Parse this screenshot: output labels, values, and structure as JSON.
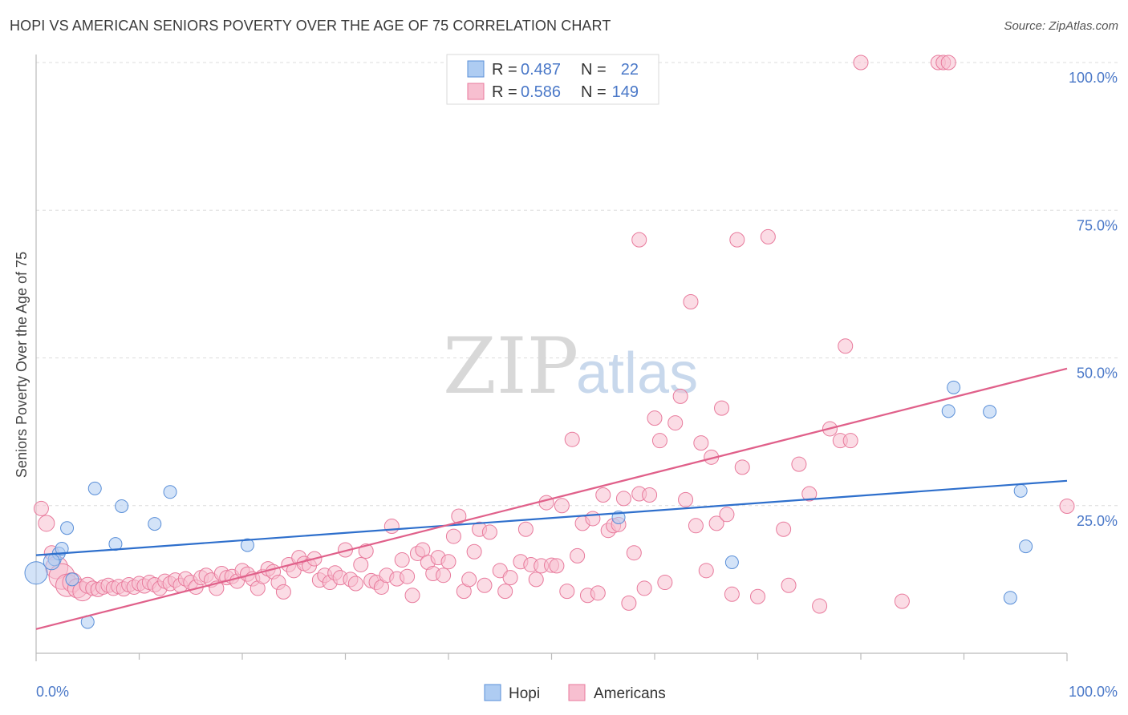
{
  "title": "HOPI VS AMERICAN SENIORS POVERTY OVER THE AGE OF 75 CORRELATION CHART",
  "source": "Source: ZipAtlas.com",
  "watermark": {
    "zip": "ZIP",
    "atlas": "atlas"
  },
  "colors": {
    "hopi_fill": "#aeccf2",
    "hopi_stroke": "#5a8fd8",
    "hopi_line": "#2e6fcc",
    "americans_fill": "#f7bfd0",
    "americans_stroke": "#e87a9c",
    "americans_line": "#e0608a",
    "grid": "#dcdcdc",
    "tick_label": "#4a78c8"
  },
  "legend": {
    "r_label": "R =",
    "n_label": "N =",
    "rows": [
      {
        "series": "Hopi",
        "r": "0.487",
        "n": "22"
      },
      {
        "series": "Americans",
        "r": "0.586",
        "n": "149"
      }
    ]
  },
  "bottom_legend": [
    "Hopi",
    "Americans"
  ],
  "chart_data": {
    "type": "scatter",
    "title": "HOPI VS AMERICAN SENIORS POVERTY OVER THE AGE OF 75 CORRELATION CHART",
    "xlabel": "",
    "ylabel": "Seniors Poverty Over the Age of 75",
    "xlim": [
      0,
      100
    ],
    "ylim": [
      0,
      100
    ],
    "x_tick_labels": [
      "0.0%",
      "100.0%"
    ],
    "y_tick_labels": [
      "25.0%",
      "50.0%",
      "75.0%",
      "100.0%"
    ],
    "y_ticks": [
      25,
      50,
      75,
      100
    ],
    "grid": true,
    "legend_position": "top-center",
    "series": [
      {
        "name": "Hopi",
        "r": 0.487,
        "n": 22,
        "trend": [
          [
            0,
            16.6
          ],
          [
            100,
            29.2
          ]
        ],
        "points": [
          [
            0.0,
            13.6,
            14
          ],
          [
            1.8,
            15.9,
            8
          ],
          [
            2.2,
            16.9,
            8
          ],
          [
            2.5,
            17.7,
            8
          ],
          [
            3.0,
            21.2,
            8
          ],
          [
            3.5,
            12.5,
            8
          ],
          [
            5.0,
            5.3,
            8
          ],
          [
            5.7,
            27.9,
            8
          ],
          [
            7.7,
            18.5,
            8
          ],
          [
            8.3,
            24.9,
            8
          ],
          [
            11.5,
            21.9,
            8
          ],
          [
            13.0,
            27.3,
            8
          ],
          [
            20.5,
            18.3,
            8
          ],
          [
            56.5,
            23.0,
            8
          ],
          [
            67.5,
            15.4,
            8
          ],
          [
            88.5,
            41.0,
            8
          ],
          [
            89.0,
            45.0,
            8
          ],
          [
            92.5,
            40.9,
            8
          ],
          [
            94.5,
            9.4,
            8
          ],
          [
            95.5,
            27.5,
            8
          ],
          [
            96.0,
            18.1,
            8
          ],
          [
            1.5,
            15.5,
            10
          ]
        ]
      },
      {
        "name": "Americans",
        "r": 0.586,
        "n": 149,
        "trend": [
          [
            0,
            4.1
          ],
          [
            100,
            48.2
          ]
        ],
        "points": [
          [
            0.5,
            24.5,
            9
          ],
          [
            1.0,
            22.0,
            10
          ],
          [
            1.5,
            17.0,
            9
          ],
          [
            2.0,
            14.5,
            14
          ],
          [
            2.5,
            13.0,
            16
          ],
          [
            3.0,
            11.5,
            14
          ],
          [
            3.5,
            12.0,
            12
          ],
          [
            4.0,
            11.0,
            12
          ],
          [
            4.5,
            10.5,
            12
          ],
          [
            5.0,
            11.5,
            10
          ],
          [
            5.5,
            11.0,
            9
          ],
          [
            6.0,
            10.8,
            9
          ],
          [
            6.5,
            11.2,
            9
          ],
          [
            7.0,
            11.5,
            9
          ],
          [
            7.5,
            11.0,
            9
          ],
          [
            8.0,
            11.3,
            9
          ],
          [
            8.5,
            10.9,
            9
          ],
          [
            9.0,
            11.6,
            9
          ],
          [
            9.5,
            11.2,
            9
          ],
          [
            10.0,
            11.8,
            9
          ],
          [
            10.5,
            11.4,
            9
          ],
          [
            11.0,
            12.0,
            9
          ],
          [
            11.5,
            11.6,
            9
          ],
          [
            12.0,
            11.0,
            9
          ],
          [
            12.5,
            12.2,
            9
          ],
          [
            13.0,
            11.8,
            9
          ],
          [
            13.5,
            12.4,
            9
          ],
          [
            14.0,
            11.5,
            9
          ],
          [
            14.5,
            12.6,
            9
          ],
          [
            15.0,
            12.0,
            9
          ],
          [
            15.5,
            11.2,
            9
          ],
          [
            16.0,
            12.8,
            9
          ],
          [
            16.5,
            13.2,
            9
          ],
          [
            17.0,
            12.4,
            9
          ],
          [
            17.5,
            11.0,
            9
          ],
          [
            18.0,
            13.5,
            9
          ],
          [
            18.5,
            12.8,
            9
          ],
          [
            19.0,
            13.0,
            9
          ],
          [
            19.5,
            12.2,
            9
          ],
          [
            20.0,
            14.0,
            9
          ],
          [
            20.5,
            13.4,
            9
          ],
          [
            21.0,
            12.6,
            9
          ],
          [
            21.5,
            11.0,
            9
          ],
          [
            22.0,
            13.0,
            9
          ],
          [
            22.5,
            14.3,
            9
          ],
          [
            23.0,
            13.8,
            9
          ],
          [
            23.5,
            12.0,
            9
          ],
          [
            24.0,
            10.4,
            9
          ],
          [
            24.5,
            15.0,
            9
          ],
          [
            25.0,
            14.0,
            9
          ],
          [
            25.5,
            16.2,
            9
          ],
          [
            26.0,
            15.2,
            9
          ],
          [
            26.5,
            14.8,
            9
          ],
          [
            27.0,
            16.0,
            9
          ],
          [
            27.5,
            12.4,
            9
          ],
          [
            28.0,
            13.2,
            9
          ],
          [
            28.5,
            12.0,
            9
          ],
          [
            29.0,
            13.6,
            9
          ],
          [
            29.5,
            12.8,
            9
          ],
          [
            30.0,
            17.5,
            9
          ],
          [
            30.5,
            12.5,
            9
          ],
          [
            31.0,
            11.8,
            9
          ],
          [
            31.5,
            15.0,
            9
          ],
          [
            32.0,
            17.3,
            9
          ],
          [
            32.5,
            12.3,
            9
          ],
          [
            33.0,
            12.0,
            9
          ],
          [
            33.5,
            11.2,
            9
          ],
          [
            34.0,
            13.2,
            9
          ],
          [
            34.5,
            21.5,
            9
          ],
          [
            35.0,
            12.6,
            9
          ],
          [
            35.5,
            15.8,
            9
          ],
          [
            36.0,
            13.0,
            9
          ],
          [
            36.5,
            9.8,
            9
          ],
          [
            37.0,
            16.9,
            9
          ],
          [
            37.5,
            17.5,
            9
          ],
          [
            38.0,
            15.4,
            9
          ],
          [
            38.5,
            13.5,
            9
          ],
          [
            39.0,
            16.2,
            9
          ],
          [
            39.5,
            13.2,
            9
          ],
          [
            40.0,
            15.5,
            9
          ],
          [
            40.5,
            19.8,
            9
          ],
          [
            41.0,
            23.2,
            9
          ],
          [
            41.5,
            10.5,
            9
          ],
          [
            42.0,
            12.5,
            9
          ],
          [
            42.5,
            17.2,
            9
          ],
          [
            43.0,
            21.0,
            9
          ],
          [
            43.5,
            11.5,
            9
          ],
          [
            44.0,
            20.5,
            9
          ],
          [
            45.0,
            14.0,
            9
          ],
          [
            45.5,
            10.5,
            9
          ],
          [
            46.0,
            12.8,
            9
          ],
          [
            47.0,
            15.5,
            9
          ],
          [
            47.5,
            21.0,
            9
          ],
          [
            48.0,
            15.0,
            9
          ],
          [
            48.5,
            12.5,
            9
          ],
          [
            49.0,
            14.8,
            9
          ],
          [
            49.5,
            25.5,
            9
          ],
          [
            50.0,
            14.9,
            9
          ],
          [
            50.5,
            14.8,
            9
          ],
          [
            51.0,
            25.0,
            9
          ],
          [
            51.5,
            10.5,
            9
          ],
          [
            52.0,
            36.2,
            9
          ],
          [
            52.5,
            16.5,
            9
          ],
          [
            53.0,
            22.0,
            9
          ],
          [
            53.5,
            9.8,
            9
          ],
          [
            54.0,
            22.8,
            9
          ],
          [
            54.5,
            10.2,
            9
          ],
          [
            55.0,
            26.8,
            9
          ],
          [
            55.5,
            20.8,
            9
          ],
          [
            56.0,
            21.6,
            9
          ],
          [
            56.5,
            21.8,
            9
          ],
          [
            57.0,
            26.2,
            9
          ],
          [
            57.5,
            8.5,
            9
          ],
          [
            58.0,
            17.0,
            9
          ],
          [
            58.5,
            27.0,
            9
          ],
          [
            58.5,
            70.0,
            9
          ],
          [
            59.0,
            11.0,
            9
          ],
          [
            59.5,
            26.8,
            9
          ],
          [
            60.0,
            39.8,
            9
          ],
          [
            60.5,
            36.0,
            9
          ],
          [
            61.0,
            12.0,
            9
          ],
          [
            62.0,
            39.0,
            9
          ],
          [
            62.5,
            43.5,
            9
          ],
          [
            63.0,
            26.0,
            9
          ],
          [
            63.5,
            59.5,
            9
          ],
          [
            64.0,
            21.6,
            9
          ],
          [
            64.5,
            35.6,
            9
          ],
          [
            65.0,
            14.0,
            9
          ],
          [
            65.5,
            33.2,
            9
          ],
          [
            66.0,
            22.0,
            9
          ],
          [
            66.5,
            41.5,
            9
          ],
          [
            67.0,
            23.5,
            9
          ],
          [
            67.5,
            10.0,
            9
          ],
          [
            68.0,
            70.0,
            9
          ],
          [
            68.5,
            31.5,
            9
          ],
          [
            70.0,
            9.6,
            9
          ],
          [
            71.0,
            70.5,
            9
          ],
          [
            72.5,
            21.0,
            9
          ],
          [
            73.0,
            11.5,
            9
          ],
          [
            74.0,
            32.0,
            9
          ],
          [
            75.0,
            27.0,
            9
          ],
          [
            76.0,
            8.0,
            9
          ],
          [
            77.0,
            38.0,
            9
          ],
          [
            78.0,
            36.0,
            9
          ],
          [
            78.5,
            52.0,
            9
          ],
          [
            79.0,
            36.0,
            9
          ],
          [
            80.0,
            100.0,
            9
          ],
          [
            84.0,
            8.8,
            9
          ],
          [
            87.5,
            100.0,
            9
          ],
          [
            88.0,
            100.0,
            9
          ],
          [
            88.5,
            100.0,
            9
          ],
          [
            100.0,
            24.9,
            9
          ]
        ]
      }
    ]
  }
}
